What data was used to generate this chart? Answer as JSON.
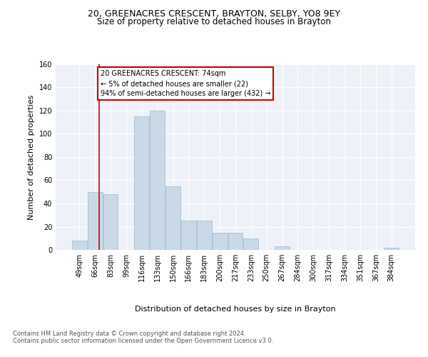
{
  "title_line1": "20, GREENACRES CRESCENT, BRAYTON, SELBY, YO8 9EY",
  "title_line2": "Size of property relative to detached houses in Brayton",
  "xlabel": "Distribution of detached houses by size in Brayton",
  "ylabel": "Number of detached properties",
  "categories": [
    "49sqm",
    "66sqm",
    "83sqm",
    "99sqm",
    "116sqm",
    "133sqm",
    "150sqm",
    "166sqm",
    "183sqm",
    "200sqm",
    "217sqm",
    "233sqm",
    "250sqm",
    "267sqm",
    "284sqm",
    "300sqm",
    "317sqm",
    "334sqm",
    "351sqm",
    "367sqm",
    "384sqm"
  ],
  "values": [
    8,
    50,
    48,
    0,
    115,
    120,
    55,
    25,
    25,
    15,
    15,
    10,
    0,
    3,
    0,
    0,
    0,
    0,
    0,
    0,
    2
  ],
  "bar_color": "#c9d9e8",
  "bar_edgecolor": "#a0b8cc",
  "ylim": [
    0,
    160
  ],
  "yticks": [
    0,
    20,
    40,
    60,
    80,
    100,
    120,
    140,
    160
  ],
  "property_line_x": 1.25,
  "property_line_color": "#cc0000",
  "annotation_title": "20 GREENACRES CRESCENT: 74sqm",
  "annotation_line1": "← 5% of detached houses are smaller (22)",
  "annotation_line2": "94% of semi-detached houses are larger (432) →",
  "annotation_box_color": "#cc0000",
  "background_color": "#eef2f8",
  "grid_color": "#ffffff",
  "footer_line1": "Contains HM Land Registry data © Crown copyright and database right 2024.",
  "footer_line2": "Contains public sector information licensed under the Open Government Licence v3.0.",
  "title_fontsize": 9,
  "subtitle_fontsize": 8.5,
  "axis_label_fontsize": 8,
  "tick_fontsize": 7,
  "footer_fontsize": 6
}
